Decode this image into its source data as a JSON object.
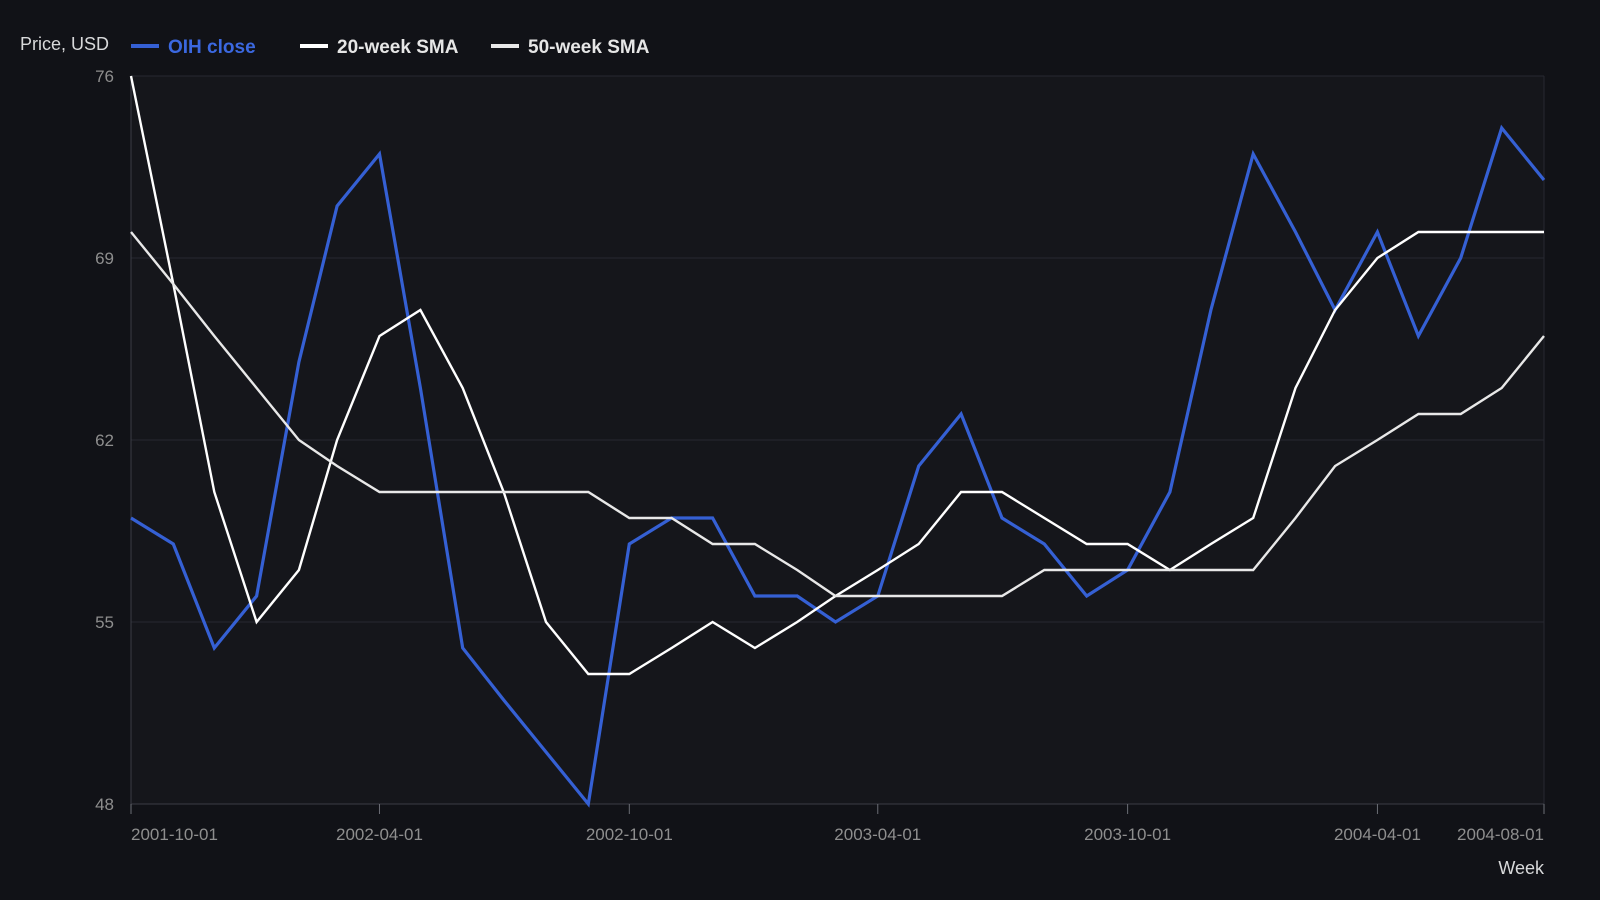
{
  "chart_data": {
    "type": "line",
    "title": "",
    "xlabel": "Week",
    "ylabel": "Price, USD",
    "ylim": [
      48,
      76
    ],
    "y_ticks": [
      48,
      55,
      62,
      69,
      76
    ],
    "x_range": [
      "2001-10-01",
      "2004-08-01"
    ],
    "x_ticks": [
      "2001-10-01",
      "2002-04-01",
      "2002-10-01",
      "2003-04-01",
      "2003-10-01",
      "2004-04-01",
      "2004-08-01"
    ],
    "grid": true,
    "legend": "top-left",
    "x": [
      "2001-10-01",
      "2001-11-01",
      "2001-12-01",
      "2002-01-01",
      "2002-02-01",
      "2002-03-01",
      "2002-04-01",
      "2002-05-01",
      "2002-06-01",
      "2002-07-01",
      "2002-08-01",
      "2002-09-01",
      "2002-10-01",
      "2002-11-01",
      "2002-12-01",
      "2003-01-01",
      "2003-02-01",
      "2003-03-01",
      "2003-04-01",
      "2003-05-01",
      "2003-06-01",
      "2003-07-01",
      "2003-08-01",
      "2003-09-01",
      "2003-10-01",
      "2003-11-01",
      "2003-12-01",
      "2004-01-01",
      "2004-02-01",
      "2004-03-01",
      "2004-04-01",
      "2004-05-01",
      "2004-06-01",
      "2004-07-01",
      "2004-08-01"
    ],
    "series": [
      {
        "name": "OIH close",
        "color": "#3560d4",
        "values": [
          59,
          58,
          54,
          56,
          65,
          71,
          73,
          64,
          54,
          52,
          50,
          48,
          58,
          59,
          59,
          56,
          56,
          55,
          56,
          61,
          63,
          59,
          58,
          56,
          57,
          60,
          67,
          73,
          70,
          67,
          70,
          66,
          69,
          74,
          72
        ]
      },
      {
        "name": "20-week SMA",
        "color": "#ffffff",
        "values": [
          76,
          68,
          60,
          55,
          57,
          62,
          66,
          67,
          64,
          60,
          55,
          53,
          53,
          54,
          55,
          54,
          55,
          56,
          57,
          58,
          60,
          60,
          59,
          58,
          58,
          57,
          58,
          59,
          64,
          67,
          69,
          70,
          70,
          70,
          70
        ]
      },
      {
        "name": "50-week SMA",
        "color": "#e8e8e8",
        "values": [
          70,
          68,
          66,
          64,
          62,
          61,
          60,
          60,
          60,
          60,
          60,
          60,
          59,
          59,
          58,
          58,
          57,
          56,
          56,
          56,
          56,
          56,
          57,
          57,
          57,
          57,
          57,
          57,
          59,
          61,
          62,
          63,
          63,
          64,
          66
        ]
      }
    ]
  }
}
